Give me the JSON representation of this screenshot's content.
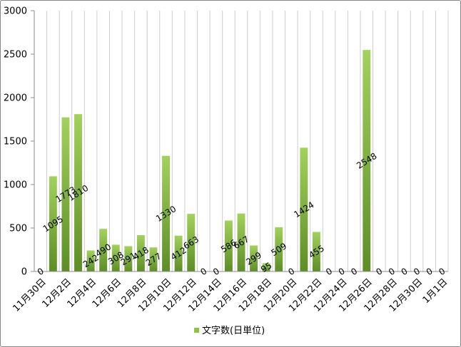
{
  "chart_data": {
    "type": "bar",
    "ylim": [
      0,
      3000
    ],
    "yticks": [
      0,
      500,
      1000,
      1500,
      2000,
      2500,
      3000
    ],
    "x_tick_labels": [
      "11月30日",
      "12月2日",
      "12月4日",
      "12月6日",
      "12月8日",
      "12月10日",
      "12月12日",
      "12月14日",
      "12月16日",
      "12月18日",
      "12月20日",
      "12月22日",
      "12月24日",
      "12月26日",
      "12月28日",
      "12月30日",
      "1月1日"
    ],
    "series": [
      {
        "name": "文字数(日単位)",
        "values": [
          0,
          1095,
          1773,
          1810,
          242,
          490,
          308,
          291,
          418,
          277,
          1330,
          412,
          663,
          0,
          0,
          586,
          667,
          299,
          95,
          509,
          0,
          1424,
          455,
          0,
          0,
          0,
          2548,
          0,
          0,
          0,
          0,
          0,
          0
        ]
      }
    ],
    "data_labels": true,
    "grid": {
      "vertical": true,
      "horizontal": false
    },
    "legend": "bottom",
    "colors": {
      "bar_top": "#a3d15d",
      "bar_bottom": "#5d8e26",
      "legend_marker": "#8cc63f",
      "gridline": "#cdcdcd",
      "axis": "#8c8c8c",
      "border": "#878787"
    }
  }
}
